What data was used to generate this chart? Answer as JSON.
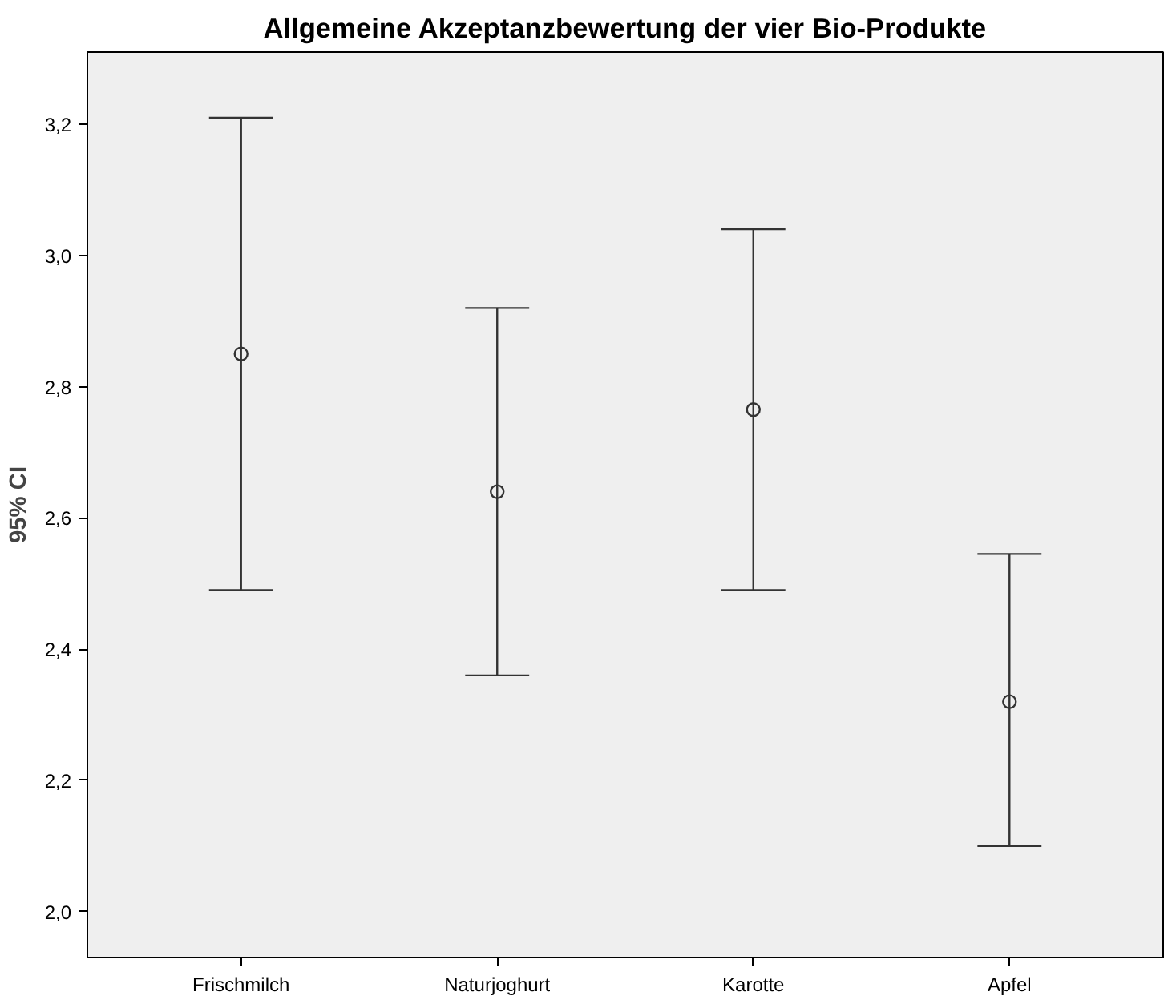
{
  "chart_data": {
    "type": "scatter",
    "title": "Allgemeine Akzeptanzbewertung der vier Bio-Produkte",
    "ylabel": "95% CI",
    "categories": [
      "Frischmilch",
      "Naturjoghurt",
      "Karotte",
      "Apfel"
    ],
    "values": [
      2.85,
      2.64,
      2.765,
      2.32
    ],
    "errors": [
      [
        2.49,
        3.21
      ],
      [
        2.36,
        2.92
      ],
      [
        2.49,
        3.04
      ],
      [
        2.1,
        2.545
      ]
    ],
    "color": "#333333",
    "marker": "circle",
    "grid": false,
    "ylim": [
      1.93,
      3.31
    ],
    "yticks": [
      {
        "value": 2.0,
        "label": "2,0"
      },
      {
        "value": 2.2,
        "label": "2,2"
      },
      {
        "value": 2.4,
        "label": "2,4"
      },
      {
        "value": 2.6,
        "label": "2,6"
      },
      {
        "value": 2.8,
        "label": "2,8"
      },
      {
        "value": 3.0,
        "label": "3,0"
      },
      {
        "value": 3.2,
        "label": "3,2"
      }
    ]
  }
}
